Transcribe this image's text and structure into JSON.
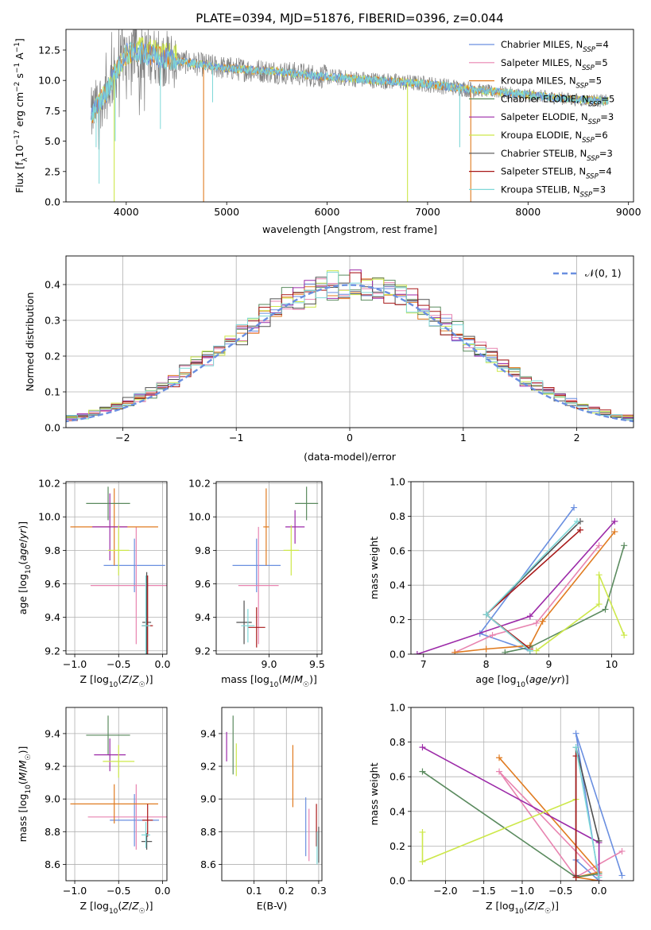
{
  "figure_title": "PLATE=0394, MJD=51876, FIBERID=0396, z=0.044",
  "colors": {
    "Chabrier MILES": "#6a8fe0",
    "Salpeter MILES": "#e884b0",
    "Kroupa MILES": "#e07b20",
    "Chabrier ELODIE": "#5a8a5e",
    "Salpeter ELODIE": "#9c2aa8",
    "Kroupa ELODIE": "#cde84a",
    "Chabrier STELIB": "#505050",
    "Salpeter STELIB": "#a81818",
    "Kroupa STELIB": "#7fd8d8",
    "data": "#7f7f7f",
    "normal": "#6a8fe0"
  },
  "chart_data": [
    {
      "type": "line",
      "id": "spectrum",
      "title": "PLATE=0394, MJD=51876, FIBERID=0396, z=0.044",
      "xlabel": "wavelength [Angstrom, rest frame]",
      "ylabel": "Flux [fλ10⁻¹⁷ erg cm⁻² s⁻¹ A⁻¹]",
      "xlim": [
        3400,
        9050
      ],
      "ylim": [
        0,
        14.2
      ],
      "xticks": [
        4000,
        5000,
        6000,
        7000,
        8000,
        9000
      ],
      "yticks": [
        0.0,
        2.5,
        5.0,
        7.5,
        10.0,
        12.5
      ],
      "grid": false,
      "legend_position": "right",
      "legend": [
        "Chabrier MILES, N_SSP=4",
        "Salpeter MILES, N_SSP=5",
        "Kroupa MILES, N_SSP=5",
        "Chabrier ELODIE, N_SSP=5",
        "Salpeter ELODIE, N_SSP=3",
        "Kroupa ELODIE, N_SSP=6",
        "Chabrier STELIB, N_SSP=3",
        "Salpeter STELIB, N_SSP=4",
        "Kroupa STELIB, N_SSP=3"
      ],
      "continuum": {
        "x": [
          3650,
          3700,
          3800,
          3900,
          4000,
          4100,
          4300,
          4500,
          5000,
          5500,
          6000,
          6500,
          7000,
          7500,
          8000,
          8500,
          8800
        ],
        "y": [
          7.0,
          7.8,
          9.0,
          10.8,
          12.2,
          12.3,
          12.0,
          11.6,
          11.0,
          10.7,
          10.3,
          10.0,
          9.7,
          9.2,
          8.8,
          8.4,
          8.3
        ]
      },
      "data_x_range": [
        3650,
        8800
      ],
      "model_x_range": [
        3650,
        8800
      ],
      "spikes": [
        {
          "x": 3880,
          "y": 0.0,
          "series": "Kroupa ELODIE"
        },
        {
          "x": 4770,
          "y": 0.0,
          "series": "Kroupa MILES"
        },
        {
          "x": 6800,
          "y": 0.0,
          "series": "Kroupa ELODIE"
        },
        {
          "x": 7430,
          "y": 0.0,
          "series": "Kroupa MILES"
        },
        {
          "x": 7320,
          "y": 4.5,
          "series": "Kroupa STELIB"
        }
      ]
    },
    {
      "type": "histogram",
      "id": "residuals",
      "xlabel": "(data-model)/error",
      "ylabel": "Normed distribution",
      "xlim": [
        -2.5,
        2.5
      ],
      "ylim": [
        0,
        0.48
      ],
      "xticks": [
        -2,
        -1,
        0,
        1,
        2
      ],
      "yticks": [
        0.0,
        0.1,
        0.2,
        0.3,
        0.4
      ],
      "grid": true,
      "bin_width": 0.1,
      "normal_label": "𝒩(0, 1)",
      "legend_position": "top-right"
    },
    {
      "type": "scatter",
      "id": "age_vs_Z",
      "xlabel": "Z [log10(Z/Z☉)]",
      "ylabel": "age  [log10(age/yr)]",
      "xlim": [
        -1.1,
        0.05
      ],
      "ylim": [
        9.18,
        10.21
      ],
      "xticks": [
        -1.0,
        -0.5,
        0.0
      ],
      "yticks": [
        9.2,
        9.4,
        9.6,
        9.8,
        10.0,
        10.2
      ],
      "grid": true,
      "points": [
        {
          "series": "Chabrier MILES",
          "x": -0.32,
          "xerr": 0.35,
          "y": 9.71,
          "yerr": 0.16
        },
        {
          "series": "Salpeter MILES",
          "x": -0.3,
          "xerr": 0.52,
          "y": 9.59,
          "yerr": 0.35
        },
        {
          "series": "Kroupa MILES",
          "x": -0.55,
          "xerr": 0.5,
          "y": 9.94,
          "yerr": 0.23
        },
        {
          "series": "Chabrier ELODIE",
          "x": -0.62,
          "xerr": 0.25,
          "y": 10.08,
          "yerr": 0.1
        },
        {
          "series": "Salpeter ELODIE",
          "x": -0.6,
          "xerr": 0.2,
          "y": 9.94,
          "yerr": 0.2
        },
        {
          "series": "Kroupa ELODIE",
          "x": -0.5,
          "xerr": 0.12,
          "y": 9.8,
          "yerr": 0.15
        },
        {
          "series": "Chabrier STELIB",
          "x": -0.18,
          "xerr": 0.05,
          "y": 9.37,
          "yerr": 0.3
        },
        {
          "series": "Salpeter STELIB",
          "x": -0.17,
          "xerr": 0.06,
          "y": 9.35,
          "yerr": 0.3
        },
        {
          "series": "Kroupa STELIB",
          "x": -0.19,
          "xerr": 0.05,
          "y": 9.35,
          "yerr": 0.3
        }
      ]
    },
    {
      "type": "scatter",
      "id": "age_vs_mass",
      "xlabel": "mass [log10(M/M☉)]",
      "ylabel": "",
      "xlim": [
        8.45,
        9.55
      ],
      "ylim": [
        9.18,
        10.21
      ],
      "xticks": [
        9.0,
        9.5
      ],
      "yticks": [
        9.2,
        9.4,
        9.6,
        9.8,
        10.0,
        10.2
      ],
      "grid": true,
      "points": [
        {
          "series": "Chabrier MILES",
          "x": 8.87,
          "xerr": 0.25,
          "y": 9.71,
          "yerr": 0.16
        },
        {
          "series": "Salpeter MILES",
          "x": 8.89,
          "xerr": 0.21,
          "y": 9.59,
          "yerr": 0.35
        },
        {
          "series": "Kroupa MILES",
          "x": 8.97,
          "xerr": 0.03,
          "y": 9.94,
          "yerr": 0.23
        },
        {
          "series": "Chabrier ELODIE",
          "x": 9.39,
          "xerr": 0.12,
          "y": 10.08,
          "yerr": 0.1
        },
        {
          "series": "Salpeter ELODIE",
          "x": 9.27,
          "xerr": 0.1,
          "y": 9.94,
          "yerr": 0.1
        },
        {
          "series": "Kroupa ELODIE",
          "x": 9.23,
          "xerr": 0.08,
          "y": 9.8,
          "yerr": 0.15
        },
        {
          "series": "Chabrier STELIB",
          "x": 8.74,
          "xerr": 0.08,
          "y": 9.37,
          "yerr": 0.13
        },
        {
          "series": "Salpeter STELIB",
          "x": 8.87,
          "xerr": 0.09,
          "y": 9.34,
          "yerr": 0.12
        },
        {
          "series": "Kroupa STELIB",
          "x": 8.78,
          "xerr": 0.07,
          "y": 9.35,
          "yerr": 0.1
        }
      ]
    },
    {
      "type": "line",
      "id": "mass_weight_vs_age",
      "xlabel": "age  [log10(age/yr)]",
      "ylabel": "mass weight",
      "xlim": [
        6.8,
        10.35
      ],
      "ylim": [
        0,
        1.0
      ],
      "xticks": [
        7,
        8,
        9,
        10
      ],
      "yticks": [
        0.0,
        0.2,
        0.4,
        0.6,
        0.8,
        1.0
      ],
      "grid": true,
      "series": [
        {
          "name": "Chabrier MILES",
          "x": [
            8.7,
            7.9,
            9.4
          ],
          "y": [
            0.02,
            0.12,
            0.85
          ]
        },
        {
          "name": "Salpeter MILES",
          "x": [
            7.5,
            8.1,
            8.8,
            9.8
          ],
          "y": [
            0.01,
            0.11,
            0.18,
            0.63
          ]
        },
        {
          "name": "Kroupa MILES",
          "x": [
            7.5,
            8.0,
            8.7,
            8.9,
            10.05
          ],
          "y": [
            0.01,
            0.03,
            0.05,
            0.19,
            0.71
          ]
        },
        {
          "name": "Chabrier ELODIE",
          "x": [
            8.3,
            8.7,
            9.9,
            10.2
          ],
          "y": [
            0.01,
            0.04,
            0.26,
            0.63
          ]
        },
        {
          "name": "Salpeter ELODIE",
          "x": [
            6.9,
            8.7,
            10.05
          ],
          "y": [
            0.0,
            0.22,
            0.77
          ]
        },
        {
          "name": "Kroupa ELODIE",
          "x": [
            8.8,
            9.8,
            9.8,
            10.2
          ],
          "y": [
            0.02,
            0.29,
            0.46,
            0.11
          ]
        },
        {
          "name": "Chabrier STELIB",
          "x": [
            8.7,
            8.0,
            9.5
          ],
          "y": [
            0.02,
            0.23,
            0.77
          ]
        },
        {
          "name": "Salpeter STELIB",
          "x": [
            8.7,
            8.0,
            9.5
          ],
          "y": [
            0.03,
            0.23,
            0.72
          ]
        },
        {
          "name": "Kroupa STELIB",
          "x": [
            8.7,
            8.0,
            9.45
          ],
          "y": [
            0.02,
            0.23,
            0.77
          ]
        }
      ]
    },
    {
      "type": "scatter",
      "id": "mass_vs_Z",
      "xlabel": "Z [log10(Z/Z☉)]",
      "ylabel": "mass [log10(M/M☉)]",
      "xlim": [
        -1.1,
        0.05
      ],
      "ylim": [
        8.5,
        9.56
      ],
      "xticks": [
        -1.0,
        -0.5,
        0.0
      ],
      "yticks": [
        8.6,
        8.8,
        9.0,
        9.2,
        9.4
      ],
      "grid": true,
      "points": [
        {
          "series": "Chabrier MILES",
          "x": -0.32,
          "xerr": 0.28,
          "y": 8.87,
          "yerr": 0.16
        },
        {
          "series": "Salpeter MILES",
          "x": -0.3,
          "xerr": 0.55,
          "y": 8.89,
          "yerr": 0.2
        },
        {
          "series": "Kroupa MILES",
          "x": -0.55,
          "xerr": 0.5,
          "y": 8.97,
          "yerr": 0.12
        },
        {
          "series": "Chabrier ELODIE",
          "x": -0.62,
          "xerr": 0.25,
          "y": 9.39,
          "yerr": 0.12
        },
        {
          "series": "Salpeter ELODIE",
          "x": -0.6,
          "xerr": 0.18,
          "y": 9.27,
          "yerr": 0.1
        },
        {
          "series": "Kroupa ELODIE",
          "x": -0.5,
          "xerr": 0.18,
          "y": 9.23,
          "yerr": 0.1
        },
        {
          "series": "Chabrier STELIB",
          "x": -0.18,
          "xerr": 0.06,
          "y": 8.74,
          "yerr": 0.05
        },
        {
          "series": "Salpeter STELIB",
          "x": -0.17,
          "xerr": 0.06,
          "y": 8.87,
          "yerr": 0.1
        },
        {
          "series": "Kroupa STELIB",
          "x": -0.19,
          "xerr": 0.05,
          "y": 8.78,
          "yerr": 0.08
        }
      ]
    },
    {
      "type": "scatter",
      "id": "mass_vs_EBV",
      "xlabel": "E(B-V)",
      "ylabel": "",
      "xlim": [
        0.0,
        0.31
      ],
      "ylim": [
        8.5,
        9.56
      ],
      "xticks": [
        0.1,
        0.2,
        0.3
      ],
      "yticks": [
        8.6,
        8.8,
        9.0,
        9.2,
        9.4
      ],
      "grid": true,
      "points": [
        {
          "series": "Chabrier MILES",
          "x": 0.26,
          "xerr": 0.0,
          "y": 8.83,
          "yerr": 0.18
        },
        {
          "series": "Salpeter MILES",
          "x": 0.27,
          "xerr": 0.0,
          "y": 8.78,
          "yerr": 0.16
        },
        {
          "series": "Kroupa MILES",
          "x": 0.22,
          "xerr": 0.0,
          "y": 9.14,
          "yerr": 0.19
        },
        {
          "series": "Chabrier ELODIE",
          "x": 0.035,
          "xerr": 0.0,
          "y": 9.33,
          "yerr": 0.18
        },
        {
          "series": "Salpeter ELODIE",
          "x": 0.015,
          "xerr": 0.0,
          "y": 9.32,
          "yerr": 0.09
        },
        {
          "series": "Kroupa ELODIE",
          "x": 0.045,
          "xerr": 0.0,
          "y": 9.24,
          "yerr": 0.1
        },
        {
          "series": "Chabrier STELIB",
          "x": 0.3,
          "xerr": 0.0,
          "y": 8.72,
          "yerr": 0.11
        },
        {
          "series": "Salpeter STELIB",
          "x": 0.293,
          "xerr": 0.0,
          "y": 8.84,
          "yerr": 0.13
        },
        {
          "series": "Kroupa STELIB",
          "x": 0.295,
          "xerr": 0.0,
          "y": 8.7,
          "yerr": 0.1
        }
      ]
    },
    {
      "type": "line",
      "id": "mass_weight_vs_Z",
      "xlabel": "Z [log10(Z/Z☉)]",
      "ylabel": "mass weight",
      "xlim": [
        -2.45,
        0.45
      ],
      "ylim": [
        0,
        1.0
      ],
      "xticks": [
        -2.0,
        -1.5,
        -1.0,
        -0.5,
        0.0
      ],
      "yticks": [
        0.0,
        0.2,
        0.4,
        0.6,
        0.8,
        1.0
      ],
      "grid": true,
      "series": [
        {
          "name": "Chabrier MILES",
          "x": [
            0.3,
            -0.3,
            0.0,
            -0.3
          ],
          "y": [
            0.03,
            0.85,
            0.0,
            0.12
          ]
        },
        {
          "name": "Salpeter MILES",
          "x": [
            0.3,
            -0.3,
            -1.3,
            0.0
          ],
          "y": [
            0.17,
            0.02,
            0.63,
            0.03
          ]
        },
        {
          "name": "Kroupa MILES",
          "x": [
            -1.3,
            0.0,
            -0.3,
            0.0
          ],
          "y": [
            0.71,
            0.05,
            0.02,
            0.0
          ]
        },
        {
          "name": "Chabrier ELODIE",
          "x": [
            -2.3,
            -0.3,
            0.0
          ],
          "y": [
            0.63,
            0.02,
            0.04
          ]
        },
        {
          "name": "Salpeter ELODIE",
          "x": [
            -2.3,
            0.0,
            0.0
          ],
          "y": [
            0.77,
            0.22,
            0.0
          ]
        },
        {
          "name": "Kroupa ELODIE",
          "x": [
            -2.3,
            -2.3,
            -0.3
          ],
          "y": [
            0.28,
            0.11,
            0.47
          ]
        },
        {
          "name": "Chabrier STELIB",
          "x": [
            0.0,
            -0.3,
            -0.3
          ],
          "y": [
            0.23,
            0.77,
            0.03
          ]
        },
        {
          "name": "Salpeter STELIB",
          "x": [
            -0.3,
            -0.3
          ],
          "y": [
            0.72,
            0.02
          ]
        },
        {
          "name": "Kroupa STELIB",
          "x": [
            -0.3,
            0.0
          ],
          "y": [
            0.77,
            0.02
          ]
        }
      ]
    }
  ]
}
